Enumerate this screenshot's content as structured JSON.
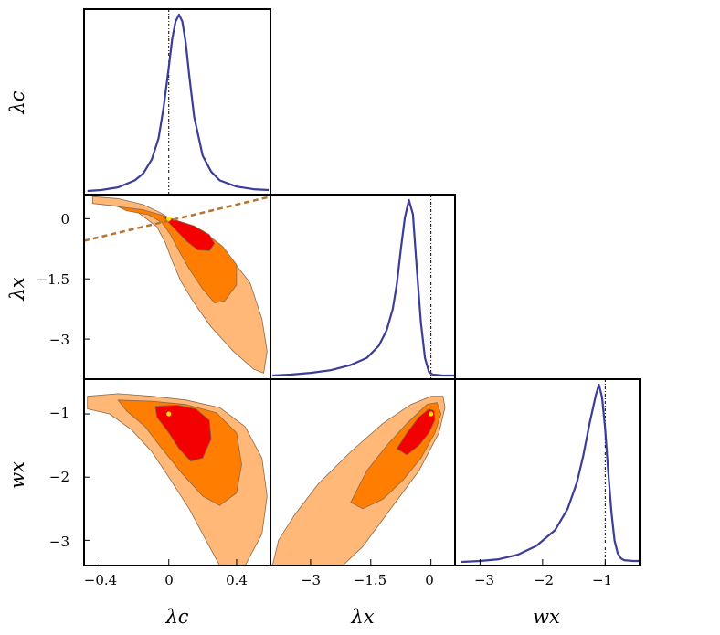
{
  "chart_data": {
    "type": "triangle-corner-plot",
    "colors": {
      "curve": "#3b3d99",
      "contour_1sigma": "#f50000",
      "contour_2sigma": "#ff7d00",
      "contour_3sigma": "#ffb878",
      "contour_stroke": "#8a6a4a",
      "best_fit_marker": "#ffe000",
      "guide_line": "#b87330",
      "reference_line": "#000000"
    },
    "axis_labels": {
      "lambda_c": "λc",
      "lambda_x": "λx",
      "w_x": "wx"
    },
    "tick_labels": {
      "lambda_c": [
        "−0.4",
        "0",
        "0.4"
      ],
      "lambda_x": [
        "−3",
        "−1.5",
        "0"
      ],
      "w_x": [
        "−3",
        "−2",
        "−1"
      ]
    },
    "ranges": {
      "lambda_c": [
        -0.5,
        0.6
      ],
      "lambda_x": [
        -4.0,
        0.6
      ],
      "w_x": [
        -3.4,
        -0.45
      ]
    },
    "reference_values": {
      "lambda_c": 0,
      "lambda_x": 0,
      "w_x": -1
    },
    "best_fit": {
      "lambda_c": 0.0,
      "lambda_x": 0.0,
      "w_x": -1.0
    },
    "marginals": [
      {
        "param": "lambda_c",
        "x": [
          -0.48,
          -0.4,
          -0.3,
          -0.2,
          -0.15,
          -0.1,
          -0.06,
          -0.03,
          0.0,
          0.02,
          0.04,
          0.06,
          0.08,
          0.1,
          0.12,
          0.15,
          0.2,
          0.25,
          0.3,
          0.4,
          0.5,
          0.59
        ],
        "y": [
          0.0,
          0.005,
          0.02,
          0.06,
          0.1,
          0.18,
          0.3,
          0.48,
          0.7,
          0.86,
          0.96,
          1.0,
          0.96,
          0.84,
          0.66,
          0.42,
          0.2,
          0.11,
          0.06,
          0.025,
          0.01,
          0.005
        ]
      },
      {
        "param": "lambda_x",
        "x": [
          -3.95,
          -3.5,
          -3.0,
          -2.5,
          -2.0,
          -1.6,
          -1.3,
          -1.1,
          -0.95,
          -0.85,
          -0.75,
          -0.65,
          -0.55,
          -0.45,
          -0.35,
          -0.25,
          -0.15,
          -0.05,
          0.05,
          0.3,
          0.6
        ],
        "y": [
          0.0,
          0.005,
          0.015,
          0.03,
          0.06,
          0.1,
          0.17,
          0.26,
          0.38,
          0.52,
          0.72,
          0.9,
          1.0,
          0.92,
          0.6,
          0.3,
          0.1,
          0.02,
          0.005,
          0.0,
          0.0
        ]
      },
      {
        "param": "w_x",
        "x": [
          -3.3,
          -3.0,
          -2.7,
          -2.4,
          -2.1,
          -1.8,
          -1.6,
          -1.45,
          -1.35,
          -1.25,
          -1.15,
          -1.1,
          -1.05,
          -1.0,
          -0.95,
          -0.9,
          -0.85,
          -0.8,
          -0.75,
          -0.7,
          -0.55,
          -0.45
        ],
        "y": [
          0.0,
          0.005,
          0.015,
          0.04,
          0.09,
          0.18,
          0.3,
          0.45,
          0.6,
          0.78,
          0.94,
          1.0,
          0.93,
          0.75,
          0.5,
          0.28,
          0.12,
          0.05,
          0.02,
          0.01,
          0.005,
          0.005
        ]
      }
    ],
    "joint_contours": [
      {
        "x_param": "lambda_c",
        "y_param": "lambda_x",
        "regions": [
          {
            "level": "3sigma",
            "points": [
              [
                -0.45,
                0.55
              ],
              [
                -0.3,
                0.5
              ],
              [
                -0.15,
                0.35
              ],
              [
                -0.05,
                0.15
              ],
              [
                0.05,
                -0.1
              ],
              [
                0.2,
                -0.45
              ],
              [
                0.35,
                -0.9
              ],
              [
                0.48,
                -1.6
              ],
              [
                0.55,
                -2.5
              ],
              [
                0.58,
                -3.3
              ],
              [
                0.56,
                -3.85
              ],
              [
                0.5,
                -3.75
              ],
              [
                0.38,
                -3.3
              ],
              [
                0.25,
                -2.7
              ],
              [
                0.15,
                -2.1
              ],
              [
                0.07,
                -1.55
              ],
              [
                0.02,
                -1.05
              ],
              [
                -0.02,
                -0.6
              ],
              [
                -0.07,
                -0.2
              ],
              [
                -0.18,
                0.15
              ],
              [
                -0.32,
                0.32
              ],
              [
                -0.45,
                0.38
              ]
            ]
          },
          {
            "level": "2sigma",
            "points": [
              [
                -0.3,
                0.3
              ],
              [
                -0.15,
                0.22
              ],
              [
                -0.05,
                0.1
              ],
              [
                0.05,
                -0.05
              ],
              [
                0.2,
                -0.3
              ],
              [
                0.32,
                -0.7
              ],
              [
                0.4,
                -1.15
              ],
              [
                0.4,
                -1.65
              ],
              [
                0.33,
                -2.05
              ],
              [
                0.27,
                -2.1
              ],
              [
                0.2,
                -1.75
              ],
              [
                0.12,
                -1.25
              ],
              [
                0.06,
                -0.8
              ],
              [
                0.01,
                -0.4
              ],
              [
                -0.04,
                -0.1
              ],
              [
                -0.12,
                0.1
              ],
              [
                -0.25,
                0.2
              ]
            ]
          },
          {
            "level": "1sigma",
            "points": [
              [
                -0.03,
                0.05
              ],
              [
                0.05,
                -0.05
              ],
              [
                0.15,
                -0.18
              ],
              [
                0.24,
                -0.4
              ],
              [
                0.27,
                -0.62
              ],
              [
                0.24,
                -0.8
              ],
              [
                0.17,
                -0.78
              ],
              [
                0.11,
                -0.58
              ],
              [
                0.05,
                -0.32
              ],
              [
                0.0,
                -0.1
              ]
            ]
          }
        ],
        "guide_line": {
          "x": [
            -0.5,
            0.6
          ],
          "y": [
            -0.55,
            0.55
          ]
        }
      },
      {
        "x_param": "lambda_c",
        "y_param": "w_x",
        "regions": [
          {
            "level": "3sigma",
            "points": [
              [
                -0.48,
                -0.72
              ],
              [
                -0.3,
                -0.68
              ],
              [
                -0.1,
                -0.72
              ],
              [
                0.1,
                -0.78
              ],
              [
                0.3,
                -0.9
              ],
              [
                0.45,
                -1.2
              ],
              [
                0.55,
                -1.7
              ],
              [
                0.58,
                -2.3
              ],
              [
                0.55,
                -2.9
              ],
              [
                0.45,
                -3.4
              ],
              [
                0.3,
                -3.4
              ],
              [
                0.22,
                -3.0
              ],
              [
                0.12,
                -2.5
              ],
              [
                0.0,
                -2.0
              ],
              [
                -0.1,
                -1.6
              ],
              [
                -0.22,
                -1.25
              ],
              [
                -0.35,
                -1.0
              ],
              [
                -0.48,
                -0.92
              ]
            ]
          },
          {
            "level": "2sigma",
            "points": [
              [
                -0.3,
                -0.78
              ],
              [
                -0.1,
                -0.8
              ],
              [
                0.1,
                -0.85
              ],
              [
                0.28,
                -0.98
              ],
              [
                0.4,
                -1.3
              ],
              [
                0.43,
                -1.8
              ],
              [
                0.4,
                -2.25
              ],
              [
                0.3,
                -2.45
              ],
              [
                0.2,
                -2.3
              ],
              [
                0.08,
                -1.95
              ],
              [
                -0.04,
                -1.55
              ],
              [
                -0.14,
                -1.2
              ],
              [
                -0.25,
                -0.95
              ]
            ]
          },
          {
            "level": "1sigma",
            "points": [
              [
                -0.08,
                -0.88
              ],
              [
                0.05,
                -0.86
              ],
              [
                0.16,
                -0.92
              ],
              [
                0.24,
                -1.1
              ],
              [
                0.25,
                -1.4
              ],
              [
                0.2,
                -1.7
              ],
              [
                0.13,
                -1.75
              ],
              [
                0.06,
                -1.55
              ],
              [
                0.0,
                -1.3
              ],
              [
                -0.07,
                -1.05
              ]
            ]
          }
        ]
      },
      {
        "x_param": "lambda_x",
        "y_param": "w_x",
        "regions": [
          {
            "level": "3sigma",
            "points": [
              [
                -3.95,
                -3.4
              ],
              [
                -3.8,
                -3.0
              ],
              [
                -3.4,
                -2.6
              ],
              [
                -2.8,
                -2.1
              ],
              [
                -2.0,
                -1.6
              ],
              [
                -1.2,
                -1.15
              ],
              [
                -0.5,
                -0.85
              ],
              [
                0.0,
                -0.72
              ],
              [
                0.3,
                -0.72
              ],
              [
                0.35,
                -0.9
              ],
              [
                0.2,
                -1.3
              ],
              [
                -0.3,
                -1.9
              ],
              [
                -1.0,
                -2.5
              ],
              [
                -1.7,
                -3.1
              ],
              [
                -2.2,
                -3.4
              ]
            ]
          },
          {
            "level": "2sigma",
            "points": [
              [
                -2.0,
                -2.4
              ],
              [
                -1.6,
                -1.9
              ],
              [
                -1.1,
                -1.5
              ],
              [
                -0.6,
                -1.15
              ],
              [
                -0.1,
                -0.85
              ],
              [
                0.15,
                -0.82
              ],
              [
                0.25,
                -1.0
              ],
              [
                0.1,
                -1.3
              ],
              [
                -0.25,
                -1.7
              ],
              [
                -0.7,
                -2.05
              ],
              [
                -1.2,
                -2.35
              ],
              [
                -1.7,
                -2.5
              ]
            ]
          },
          {
            "level": "1sigma",
            "points": [
              [
                -0.85,
                -1.55
              ],
              [
                -0.6,
                -1.3
              ],
              [
                -0.3,
                -1.05
              ],
              [
                -0.05,
                -0.92
              ],
              [
                0.08,
                -0.95
              ],
              [
                0.1,
                -1.1
              ],
              [
                -0.05,
                -1.3
              ],
              [
                -0.3,
                -1.5
              ],
              [
                -0.6,
                -1.65
              ]
            ]
          }
        ]
      }
    ]
  }
}
